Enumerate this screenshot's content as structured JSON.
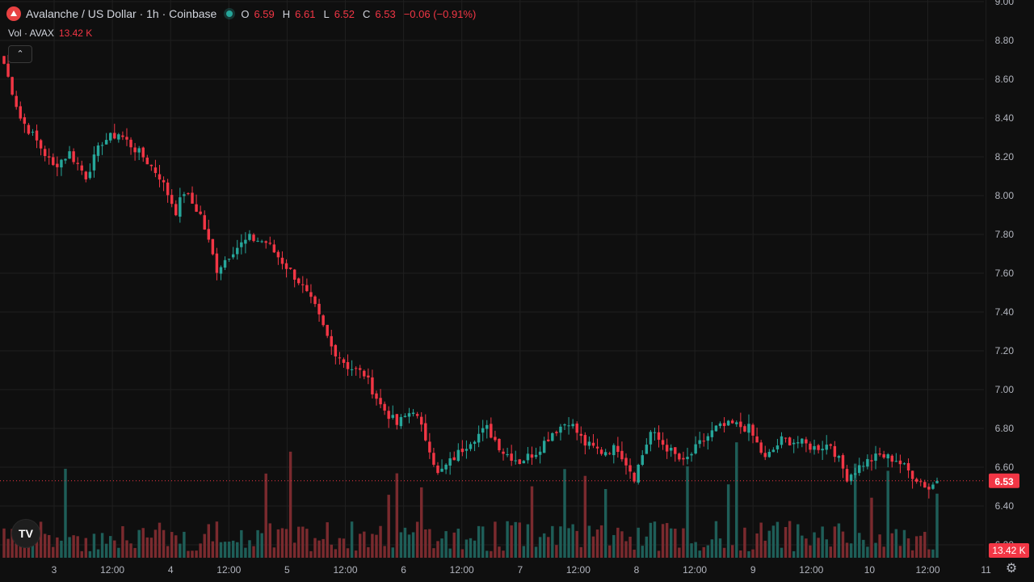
{
  "legend": {
    "symbol_title": "Avalanche / US Dollar · 1h · Coinbase",
    "open_label": "O",
    "open": "6.59",
    "high_label": "H",
    "high": "6.61",
    "low_label": "L",
    "low": "6.52",
    "close_label": "C",
    "close": "6.53",
    "change": "−0.06 (−0.91%)"
  },
  "volume_legend": {
    "label": "Vol · AVAX",
    "value": "13.42 K"
  },
  "controls": {
    "collapse_glyph": "⌃",
    "settings_glyph": "⚙",
    "logo_text": "TV"
  },
  "colors": {
    "up": "#26a69a",
    "down": "#f23645",
    "up_vol": "#1e5e58",
    "down_vol": "#7a2a2e"
  },
  "chart_data": {
    "type": "candlestick",
    "ylim": [
      6.15,
      9.0
    ],
    "price_ticks": [
      "9.00",
      "8.80",
      "8.60",
      "8.40",
      "8.20",
      "8.00",
      "7.80",
      "7.60",
      "7.40",
      "7.20",
      "7.00",
      "6.80",
      "6.60",
      "6.40",
      "6.20"
    ],
    "x_ticks": [
      "3",
      "12:00",
      "4",
      "12:00",
      "5",
      "12:00",
      "6",
      "12:00",
      "7",
      "12:00",
      "8",
      "12:00",
      "9",
      "12:00",
      "10",
      "12:00",
      "11"
    ],
    "last_price_label": "6.53",
    "last_volume_label": "13.42 K",
    "anchors": [
      [
        0,
        8.68
      ],
      [
        4,
        8.4
      ],
      [
        8,
        8.28
      ],
      [
        12,
        8.15
      ],
      [
        16,
        8.22
      ],
      [
        20,
        8.1
      ],
      [
        24,
        8.28
      ],
      [
        28,
        8.32
      ],
      [
        34,
        8.2
      ],
      [
        38,
        8.1
      ],
      [
        42,
        7.92
      ],
      [
        44,
        8.02
      ],
      [
        48,
        7.9
      ],
      [
        52,
        7.62
      ],
      [
        56,
        7.72
      ],
      [
        60,
        7.78
      ],
      [
        64,
        7.76
      ],
      [
        68,
        7.66
      ],
      [
        72,
        7.56
      ],
      [
        76,
        7.42
      ],
      [
        80,
        7.22
      ],
      [
        84,
        7.12
      ],
      [
        88,
        7.08
      ],
      [
        92,
        6.92
      ],
      [
        96,
        6.82
      ],
      [
        100,
        6.9
      ],
      [
        104,
        6.7
      ],
      [
        106,
        6.56
      ],
      [
        110,
        6.65
      ],
      [
        114,
        6.74
      ],
      [
        118,
        6.8
      ],
      [
        122,
        6.68
      ],
      [
        126,
        6.63
      ],
      [
        130,
        6.68
      ],
      [
        134,
        6.78
      ],
      [
        138,
        6.84
      ],
      [
        142,
        6.72
      ],
      [
        146,
        6.68
      ],
      [
        150,
        6.7
      ],
      [
        154,
        6.55
      ],
      [
        158,
        6.78
      ],
      [
        162,
        6.7
      ],
      [
        166,
        6.62
      ],
      [
        170,
        6.72
      ],
      [
        174,
        6.8
      ],
      [
        178,
        6.82
      ],
      [
        182,
        6.8
      ],
      [
        186,
        6.64
      ],
      [
        190,
        6.74
      ],
      [
        194,
        6.73
      ],
      [
        198,
        6.7
      ],
      [
        202,
        6.72
      ],
      [
        206,
        6.55
      ],
      [
        210,
        6.62
      ],
      [
        214,
        6.66
      ],
      [
        218,
        6.64
      ],
      [
        222,
        6.56
      ],
      [
        226,
        6.49
      ],
      [
        228,
        6.53
      ]
    ]
  }
}
